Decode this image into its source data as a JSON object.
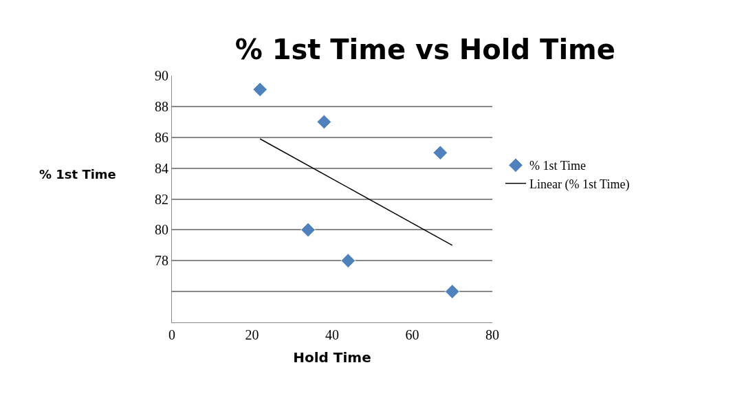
{
  "chart_data": {
    "type": "scatter",
    "title": "% 1st Time vs Hold Time",
    "xlabel": "Hold Time",
    "ylabel": "% 1st Time",
    "series": [
      {
        "name": "% 1st Time",
        "color": "#4f81bd",
        "marker": "diamond",
        "x": [
          22,
          38,
          67,
          34,
          44,
          70
        ],
        "values": [
          89.1,
          87.0,
          85.0,
          80.0,
          78.0,
          76.0
        ]
      },
      {
        "name": "Linear (% 1st Time)",
        "type": "line",
        "color": "#000000",
        "marker": "none",
        "x": [
          22,
          70
        ],
        "values": [
          85.9,
          79.0
        ]
      }
    ],
    "xlim": [
      0,
      80
    ],
    "xticks": [
      0,
      20,
      40,
      60,
      80
    ],
    "ylim": [
      74,
      90
    ],
    "yticks": [
      90,
      88,
      86,
      84,
      82,
      80,
      78,
      {
        "value": 76,
        "label": null
      },
      {
        "value": 74,
        "label": null
      }
    ],
    "grid": "y",
    "legend": "right"
  }
}
